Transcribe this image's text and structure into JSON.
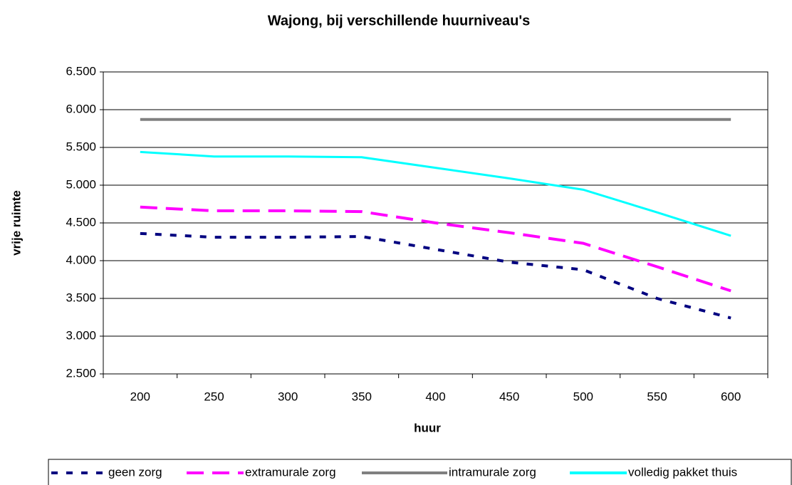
{
  "chart_data": {
    "type": "line",
    "title": "Wajong, bij verschillende huurniveau's",
    "x_label": "huur",
    "y_label": "vrije ruimte",
    "categories": [
      "200",
      "250",
      "300",
      "350",
      "400",
      "450",
      "500",
      "550",
      "600"
    ],
    "series": [
      {
        "name": "geen zorg",
        "color": "#000080",
        "style": "dotted",
        "values": [
          4360,
          4310,
          4310,
          4320,
          4150,
          3980,
          3880,
          3500,
          3240
        ]
      },
      {
        "name": "extramurale zorg",
        "color": "#ff00ff",
        "style": "dashed",
        "values": [
          4710,
          4660,
          4660,
          4650,
          4500,
          4370,
          4230,
          3920,
          3600
        ]
      },
      {
        "name": "intramurale zorg",
        "color": "#808080",
        "style": "solid",
        "values": [
          5870,
          5870,
          5870,
          5870,
          5870,
          5870,
          5870,
          5870,
          5870
        ]
      },
      {
        "name": "volledig pakket thuis",
        "color": "#00ffff",
        "style": "solid",
        "values": [
          5440,
          5380,
          5380,
          5370,
          5230,
          5090,
          4940,
          4640,
          4330
        ]
      }
    ],
    "ylim": [
      2500,
      6500
    ],
    "yticks": [
      {
        "value": 2500,
        "label": "2.500"
      },
      {
        "value": 3000,
        "label": "3.000"
      },
      {
        "value": 3500,
        "label": "3.500"
      },
      {
        "value": 4000,
        "label": "4.000"
      },
      {
        "value": 4500,
        "label": "4.500"
      },
      {
        "value": 5000,
        "label": "5.000"
      },
      {
        "value": 5500,
        "label": "5.500"
      },
      {
        "value": 6000,
        "label": "6.000"
      },
      {
        "value": 6500,
        "label": "6.500"
      }
    ],
    "grid": true,
    "legend": "bottom"
  }
}
